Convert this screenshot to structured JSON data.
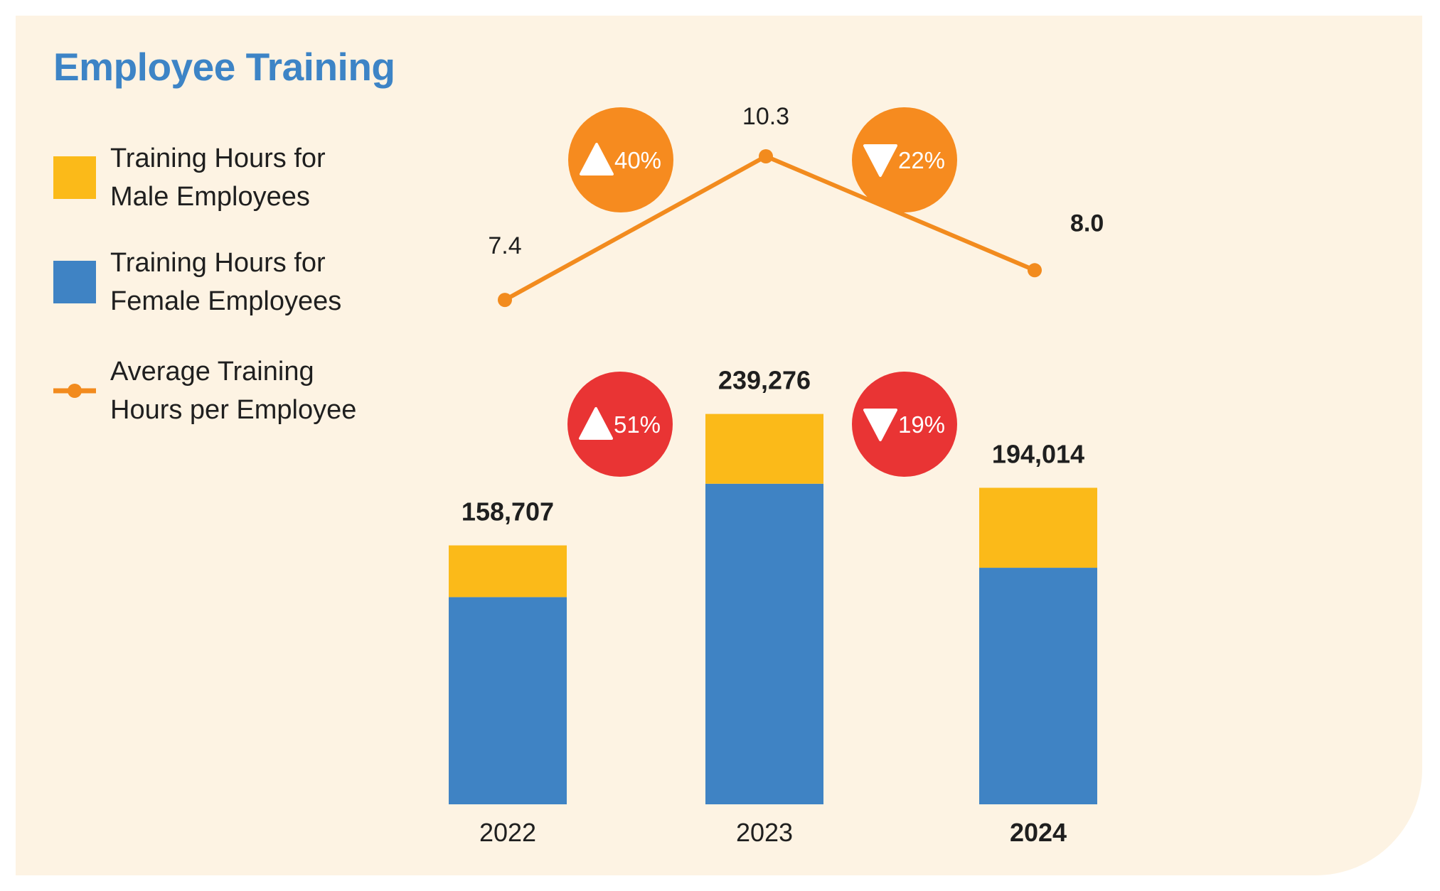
{
  "title": "Employee Training",
  "colors": {
    "background": "#fdf3e3",
    "title": "#3d84c6",
    "male": "#fbba19",
    "female": "#3f83c4",
    "line": "#f28b1e",
    "line_badge": "#f68b1f",
    "bar_badge": "#e93434",
    "text": "#1f1f1f"
  },
  "legend": [
    {
      "label": "Training Hours for Male Employees",
      "swatch": "square",
      "color_key": "male"
    },
    {
      "label": "Training Hours for Female Employees",
      "swatch": "square",
      "color_key": "female"
    },
    {
      "label": "Average Training Hours per Employee",
      "swatch": "line-marker",
      "color_key": "line"
    }
  ],
  "chart_data": {
    "type": "bar",
    "stacked": true,
    "categories": [
      "2022",
      "2023",
      "2024"
    ],
    "highlighted_category": "2024",
    "series": [
      {
        "name": "Training Hours for Female Employees",
        "values": [
          127000,
          196500,
          145000
        ]
      },
      {
        "name": "Training Hours for Male Employees",
        "values": [
          31707,
          42776,
          49014
        ]
      }
    ],
    "totals": [
      "158,707",
      "239,276",
      "194,014"
    ],
    "total_values": [
      158707,
      239276,
      194014
    ],
    "ylim": [
      0,
      260000
    ],
    "line_series": {
      "name": "Average Training Hours per Employee",
      "values": [
        7.4,
        10.3,
        8.0
      ],
      "labels": [
        "7.4",
        "10.3",
        "8.0"
      ],
      "ylim": [
        7.0,
        10.3
      ]
    },
    "line_changes": [
      {
        "direction": "up",
        "label": "40%"
      },
      {
        "direction": "down",
        "label": "22%"
      }
    ],
    "bar_changes": [
      {
        "direction": "up",
        "label": "51%"
      },
      {
        "direction": "down",
        "label": "19%"
      }
    ],
    "grid": false,
    "legend_position": "left"
  }
}
